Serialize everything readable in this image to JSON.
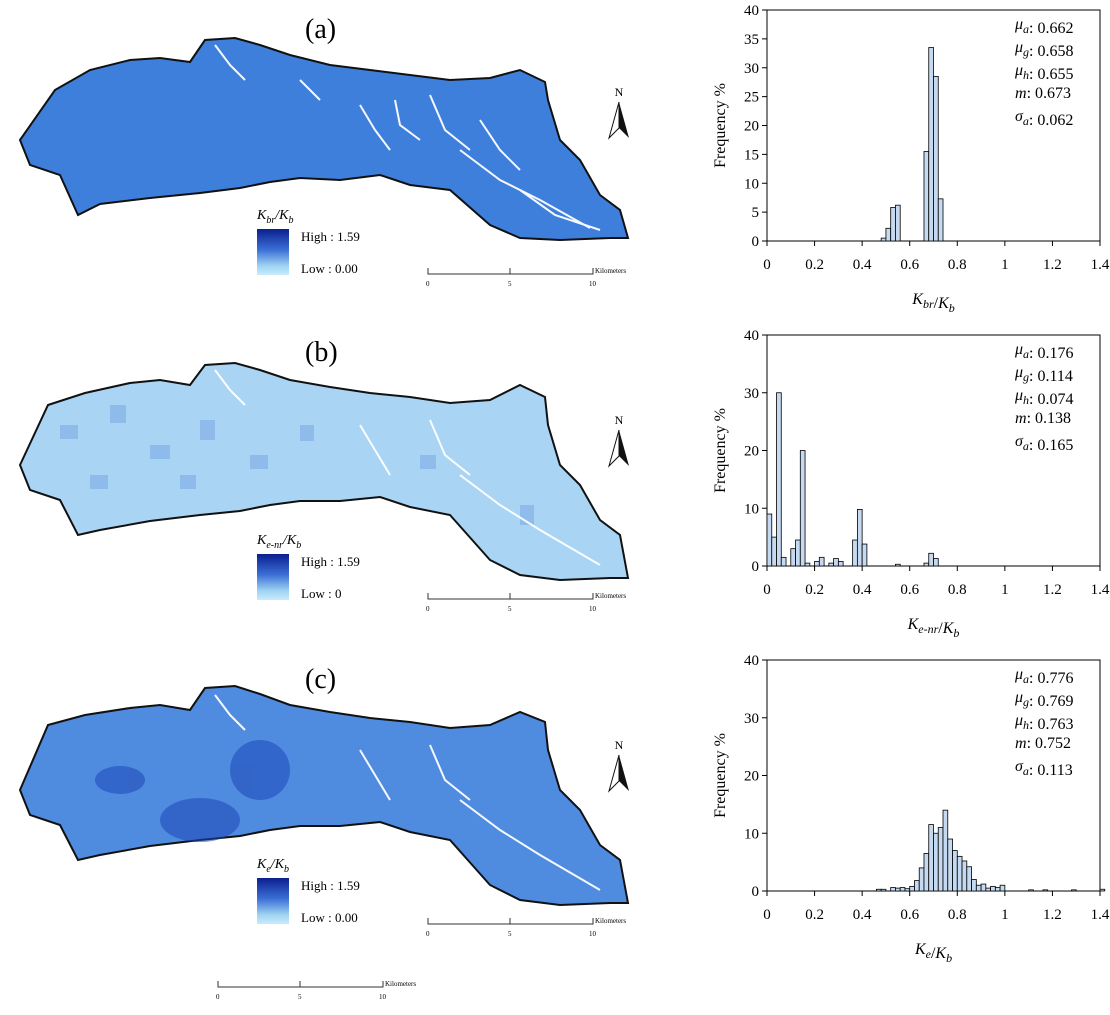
{
  "panels": [
    {
      "label": "(a)",
      "legend": {
        "title": "K_br/K_b",
        "high": "High : 1.59",
        "low": "Low : 0.00"
      },
      "scale": {
        "ticks": [
          "0",
          "5",
          "10"
        ],
        "unit": "Kilometers"
      },
      "map_color": "#3f7fdc",
      "stats": [
        {
          "name": "μ_a",
          "value": "0.662"
        },
        {
          "name": "μ_g",
          "value": "0.658"
        },
        {
          "name": "μ_h",
          "value": "0.655"
        },
        {
          "name": "m",
          "value": "0.673"
        },
        {
          "name": "σ_a",
          "value": "0.062"
        }
      ]
    },
    {
      "label": "(b)",
      "legend": {
        "title": "K_e-nr/K_b",
        "high": "High : 1.59",
        "low": "Low : 0"
      },
      "scale": {
        "ticks": [
          "0",
          "5",
          "10"
        ],
        "unit": "Kilometers"
      },
      "map_color": "#a9d4f3",
      "stats": [
        {
          "name": "μ_a",
          "value": "0.176"
        },
        {
          "name": "μ_g",
          "value": "0.114"
        },
        {
          "name": "μ_h",
          "value": "0.074"
        },
        {
          "name": "m",
          "value": "0.138"
        },
        {
          "name": "σ_a",
          "value": "0.165"
        }
      ]
    },
    {
      "label": "(c)",
      "legend": {
        "title": "K_e/K_b",
        "high": "High : 1.59",
        "low": "Low : 0.00"
      },
      "scale": {
        "ticks": [
          "0",
          "5",
          "10"
        ],
        "unit": "Kilometers"
      },
      "map_color": "#4f8ce0",
      "stats": [
        {
          "name": "μ_a",
          "value": "0.776"
        },
        {
          "name": "μ_g",
          "value": "0.769"
        },
        {
          "name": "μ_h",
          "value": "0.763"
        },
        {
          "name": "m",
          "value": "0.752"
        },
        {
          "name": "σ_a",
          "value": "0.113"
        }
      ]
    }
  ],
  "north_label": "N",
  "bottom_scale": {
    "ticks": [
      "0",
      "5",
      "10"
    ],
    "unit": "Kilometers"
  },
  "bar_fill": "#c5d9f1",
  "chart_data": [
    {
      "type": "bar",
      "ylabel": "Frequency %",
      "xlabel": "K_br/K_b",
      "xlim": [
        0,
        1.4
      ],
      "ylim": [
        0,
        40
      ],
      "xticks": [
        "0",
        "0.2",
        "0.4",
        "0.6",
        "0.8",
        "1",
        "1.2",
        "1.4"
      ],
      "yticks": [
        "0",
        "5",
        "10",
        "15",
        "20",
        "25",
        "30",
        "35",
        "40"
      ],
      "bin_width": 0.02,
      "bins": [
        [
          0.48,
          0.5
        ],
        [
          0.5,
          2.2
        ],
        [
          0.52,
          5.8
        ],
        [
          0.54,
          6.2
        ],
        [
          0.66,
          15.5
        ],
        [
          0.68,
          33.5
        ],
        [
          0.7,
          28.5
        ],
        [
          0.72,
          7.3
        ]
      ]
    },
    {
      "type": "bar",
      "ylabel": "Frequency %",
      "xlabel": "K_e-nr/K_b",
      "xlim": [
        0,
        1.4
      ],
      "ylim": [
        0,
        40
      ],
      "xticks": [
        "0",
        "0.2",
        "0.4",
        "0.6",
        "0.8",
        "1",
        "1.2",
        "1.4"
      ],
      "yticks": [
        "0",
        "10",
        "20",
        "30",
        "40"
      ],
      "bin_width": 0.02,
      "bins": [
        [
          0.0,
          9.0
        ],
        [
          0.02,
          5.0
        ],
        [
          0.04,
          30.0
        ],
        [
          0.06,
          1.5
        ],
        [
          0.1,
          3.0
        ],
        [
          0.12,
          4.5
        ],
        [
          0.14,
          20.0
        ],
        [
          0.16,
          0.5
        ],
        [
          0.2,
          0.8
        ],
        [
          0.22,
          1.5
        ],
        [
          0.26,
          0.5
        ],
        [
          0.28,
          1.3
        ],
        [
          0.3,
          0.8
        ],
        [
          0.36,
          4.5
        ],
        [
          0.38,
          9.8
        ],
        [
          0.4,
          3.8
        ],
        [
          0.54,
          0.3
        ],
        [
          0.66,
          0.5
        ],
        [
          0.68,
          2.2
        ],
        [
          0.7,
          1.3
        ]
      ]
    },
    {
      "type": "bar",
      "ylabel": "Frequency %",
      "xlabel": "K_e/K_b",
      "xlim": [
        0,
        1.4
      ],
      "ylim": [
        0,
        40
      ],
      "xticks": [
        "0",
        "0.2",
        "0.4",
        "0.6",
        "0.8",
        "1",
        "1.2",
        "1.4"
      ],
      "yticks": [
        "0",
        "10",
        "20",
        "30",
        "40"
      ],
      "bin_width": 0.02,
      "bins": [
        [
          0.46,
          0.3
        ],
        [
          0.48,
          0.3
        ],
        [
          0.52,
          0.6
        ],
        [
          0.54,
          0.5
        ],
        [
          0.56,
          0.6
        ],
        [
          0.58,
          0.4
        ],
        [
          0.6,
          0.8
        ],
        [
          0.62,
          1.8
        ],
        [
          0.64,
          4.0
        ],
        [
          0.66,
          6.5
        ],
        [
          0.68,
          11.5
        ],
        [
          0.7,
          10.0
        ],
        [
          0.72,
          11.0
        ],
        [
          0.74,
          14.0
        ],
        [
          0.76,
          9.0
        ],
        [
          0.78,
          7.0
        ],
        [
          0.8,
          6.0
        ],
        [
          0.82,
          5.2
        ],
        [
          0.84,
          4.2
        ],
        [
          0.86,
          2.0
        ],
        [
          0.88,
          1.0
        ],
        [
          0.9,
          1.2
        ],
        [
          0.92,
          0.5
        ],
        [
          0.94,
          0.8
        ],
        [
          0.96,
          0.6
        ],
        [
          0.98,
          1.0
        ],
        [
          1.1,
          0.2
        ],
        [
          1.16,
          0.2
        ],
        [
          1.28,
          0.2
        ],
        [
          1.4,
          0.3
        ]
      ]
    }
  ]
}
